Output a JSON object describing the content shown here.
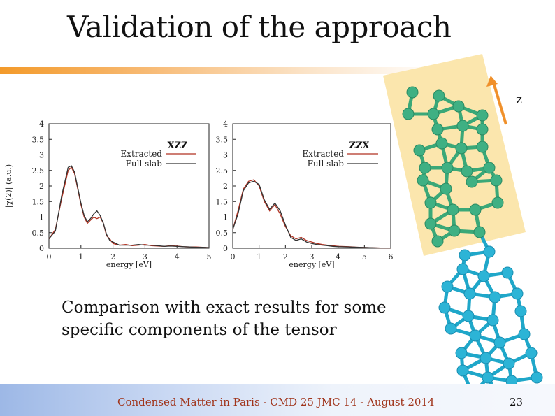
{
  "slide": {
    "title": "Validation of the approach",
    "caption_line1": "Comparison with exact results for some",
    "caption_line2": "specific components of the tensor",
    "footer": "Condensed Matter in Paris - CMD 25 JMC 14 -  August 2014",
    "page_number": "23",
    "axis_marker": "z"
  },
  "colors": {
    "extracted": "#b03020",
    "full_slab": "#333333",
    "accent_orange": "#f0902a"
  },
  "chart_data": [
    {
      "type": "line",
      "title": "XZZ",
      "xlabel": "energy [eV]",
      "ylabel": "|χ(2)| (a.u.)",
      "xlim": [
        0,
        5
      ],
      "ylim": [
        0,
        4
      ],
      "x_ticks": [
        "0",
        "1",
        "2",
        "3",
        "4",
        "5"
      ],
      "y_ticks": [
        "0",
        "0.5",
        "1",
        "1.5",
        "2",
        "2.5",
        "3",
        "3.5",
        "4"
      ],
      "legend_position": "top-right",
      "series": [
        {
          "name": "Extracted",
          "x": [
            0,
            0.2,
            0.4,
            0.6,
            0.7,
            0.8,
            0.9,
            1.0,
            1.1,
            1.2,
            1.3,
            1.4,
            1.5,
            1.6,
            1.7,
            1.8,
            1.9,
            2.0,
            2.2,
            2.4,
            2.6,
            2.8,
            3.0,
            3.2,
            3.4,
            3.6,
            3.8,
            4.0,
            4.2,
            4.4,
            4.6,
            4.8,
            5.0
          ],
          "y": [
            0.3,
            0.6,
            1.6,
            2.5,
            2.6,
            2.4,
            1.9,
            1.4,
            1.0,
            0.8,
            0.9,
            1.0,
            0.95,
            1.0,
            0.8,
            0.4,
            0.3,
            0.15,
            0.1,
            0.12,
            0.08,
            0.1,
            0.12,
            0.08,
            0.07,
            0.06,
            0.08,
            0.07,
            0.05,
            0.04,
            0.04,
            0.03,
            0.02
          ]
        },
        {
          "name": "Full slab",
          "x": [
            0,
            0.2,
            0.4,
            0.6,
            0.7,
            0.8,
            0.9,
            1.0,
            1.1,
            1.2,
            1.3,
            1.4,
            1.5,
            1.6,
            1.7,
            1.8,
            1.9,
            2.0,
            2.2,
            2.4,
            2.6,
            2.8,
            3.0,
            3.2,
            3.4,
            3.6,
            3.8,
            4.0,
            4.2,
            4.4,
            4.6,
            4.8,
            5.0
          ],
          "y": [
            0.3,
            0.55,
            1.7,
            2.6,
            2.65,
            2.45,
            1.95,
            1.45,
            1.05,
            0.85,
            0.95,
            1.1,
            1.2,
            1.05,
            0.8,
            0.45,
            0.25,
            0.2,
            0.1,
            0.1,
            0.1,
            0.12,
            0.1,
            0.1,
            0.08,
            0.06,
            0.07,
            0.06,
            0.05,
            0.04,
            0.03,
            0.03,
            0.02
          ]
        }
      ]
    },
    {
      "type": "line",
      "title": "ZZX",
      "xlabel": "energy [eV]",
      "ylabel": "",
      "xlim": [
        0,
        6
      ],
      "ylim": [
        0,
        4
      ],
      "x_ticks": [
        "0",
        "1",
        "2",
        "3",
        "4",
        "5",
        "6"
      ],
      "y_ticks": [
        "0",
        "0.5",
        "1",
        "1.5",
        "2",
        "2.5",
        "3",
        "3.5",
        "4"
      ],
      "legend_position": "top-right",
      "series": [
        {
          "name": "Extracted",
          "x": [
            0,
            0.2,
            0.4,
            0.6,
            0.8,
            1.0,
            1.2,
            1.4,
            1.6,
            1.8,
            2.0,
            2.2,
            2.4,
            2.6,
            2.8,
            3.0,
            3.2,
            3.4,
            3.6,
            3.8,
            4.0,
            4.4,
            4.8,
            5.2,
            5.6,
            6.0
          ],
          "y": [
            0.6,
            1.2,
            1.9,
            2.15,
            2.2,
            2.0,
            1.5,
            1.2,
            1.4,
            1.1,
            0.7,
            0.4,
            0.3,
            0.35,
            0.25,
            0.2,
            0.15,
            0.12,
            0.1,
            0.08,
            0.06,
            0.05,
            0.03,
            0.02,
            0.01,
            0.01
          ]
        },
        {
          "name": "Full slab",
          "x": [
            0,
            0.2,
            0.4,
            0.6,
            0.8,
            1.0,
            1.2,
            1.4,
            1.6,
            1.8,
            2.0,
            2.2,
            2.4,
            2.6,
            2.8,
            3.0,
            3.2,
            3.4,
            3.6,
            3.8,
            4.0,
            4.4,
            4.8,
            5.2,
            5.6,
            6.0
          ],
          "y": [
            0.6,
            1.1,
            1.85,
            2.1,
            2.15,
            2.05,
            1.55,
            1.25,
            1.45,
            1.2,
            0.75,
            0.35,
            0.25,
            0.3,
            0.2,
            0.15,
            0.12,
            0.1,
            0.08,
            0.06,
            0.05,
            0.04,
            0.03,
            0.02,
            0.01,
            0.01
          ]
        }
      ]
    }
  ]
}
